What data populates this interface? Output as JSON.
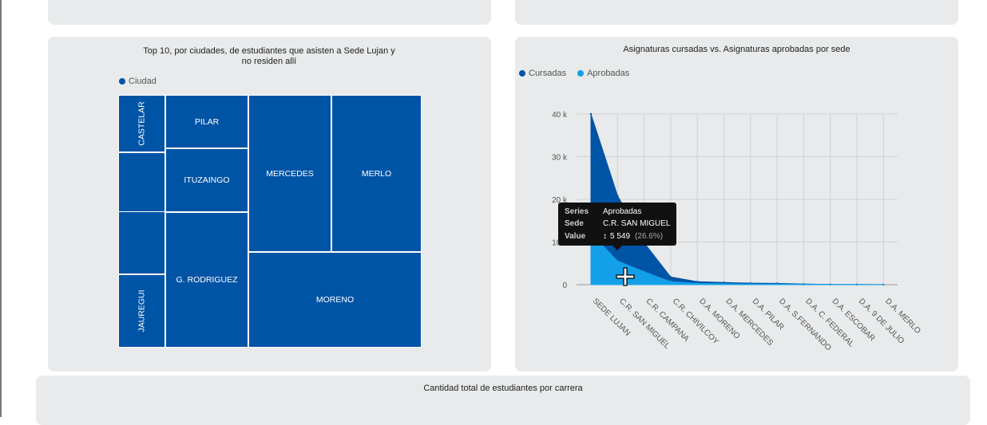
{
  "treemap": {
    "title": "Top 10, por ciudades, de estudiantes que asisten a Sede Lujan y no residen allí",
    "legend": "Ciudad",
    "color": "#0054a6",
    "cells": [
      "CASTELAR",
      "",
      "",
      "JAUREGUI",
      "PILAR",
      "ITUZAINGO",
      "G. RODRIGUEZ",
      "MERCEDES",
      "MERLO",
      "MORENO"
    ]
  },
  "area": {
    "title": "Asignaturas cursadas vs. Asignaturas aprobadas por sede",
    "tooltip": {
      "series_key": "Series",
      "series_val": "Aprobadas",
      "sede_key": "Sede",
      "sede_val": "C.R. SAN MIGUEL",
      "value_key": "Value",
      "value_val": "5 549",
      "pct": "(26.6%)"
    }
  },
  "chart_data": {
    "type": "area",
    "categories": [
      "SEDE LUJAN",
      "C.R. SAN MIGUEL",
      "C.R. CAMPANA",
      "C.R. CHIVILCOY",
      "D.A. MORENO",
      "D.A. MERCEDES",
      "D.A. PILAR",
      "D.A. S.FERNANDO",
      "D.A. C. FEDERAL",
      "D.A. ESCOBAR",
      "D.A. 9 DE JULIO",
      "D.A. MERLO"
    ],
    "series": [
      {
        "name": "Cursadas",
        "color": "#0054a6",
        "values": [
          40000,
          20860,
          9800,
          1800,
          700,
          500,
          350,
          300,
          150,
          60,
          30,
          20
        ]
      },
      {
        "name": "Aprobadas",
        "color": "#14a0e8",
        "values": [
          12000,
          5549,
          3000,
          700,
          300,
          200,
          150,
          120,
          60,
          25,
          10,
          8
        ]
      }
    ],
    "y_ticks": [
      "0",
      "10 k",
      "20 k",
      "30 k",
      "40 k"
    ],
    "ylim": [
      0,
      40000
    ],
    "grid": true,
    "legend": "top-left"
  },
  "bottom": {
    "title": "Cantidad total de estudiantes por carrera"
  }
}
